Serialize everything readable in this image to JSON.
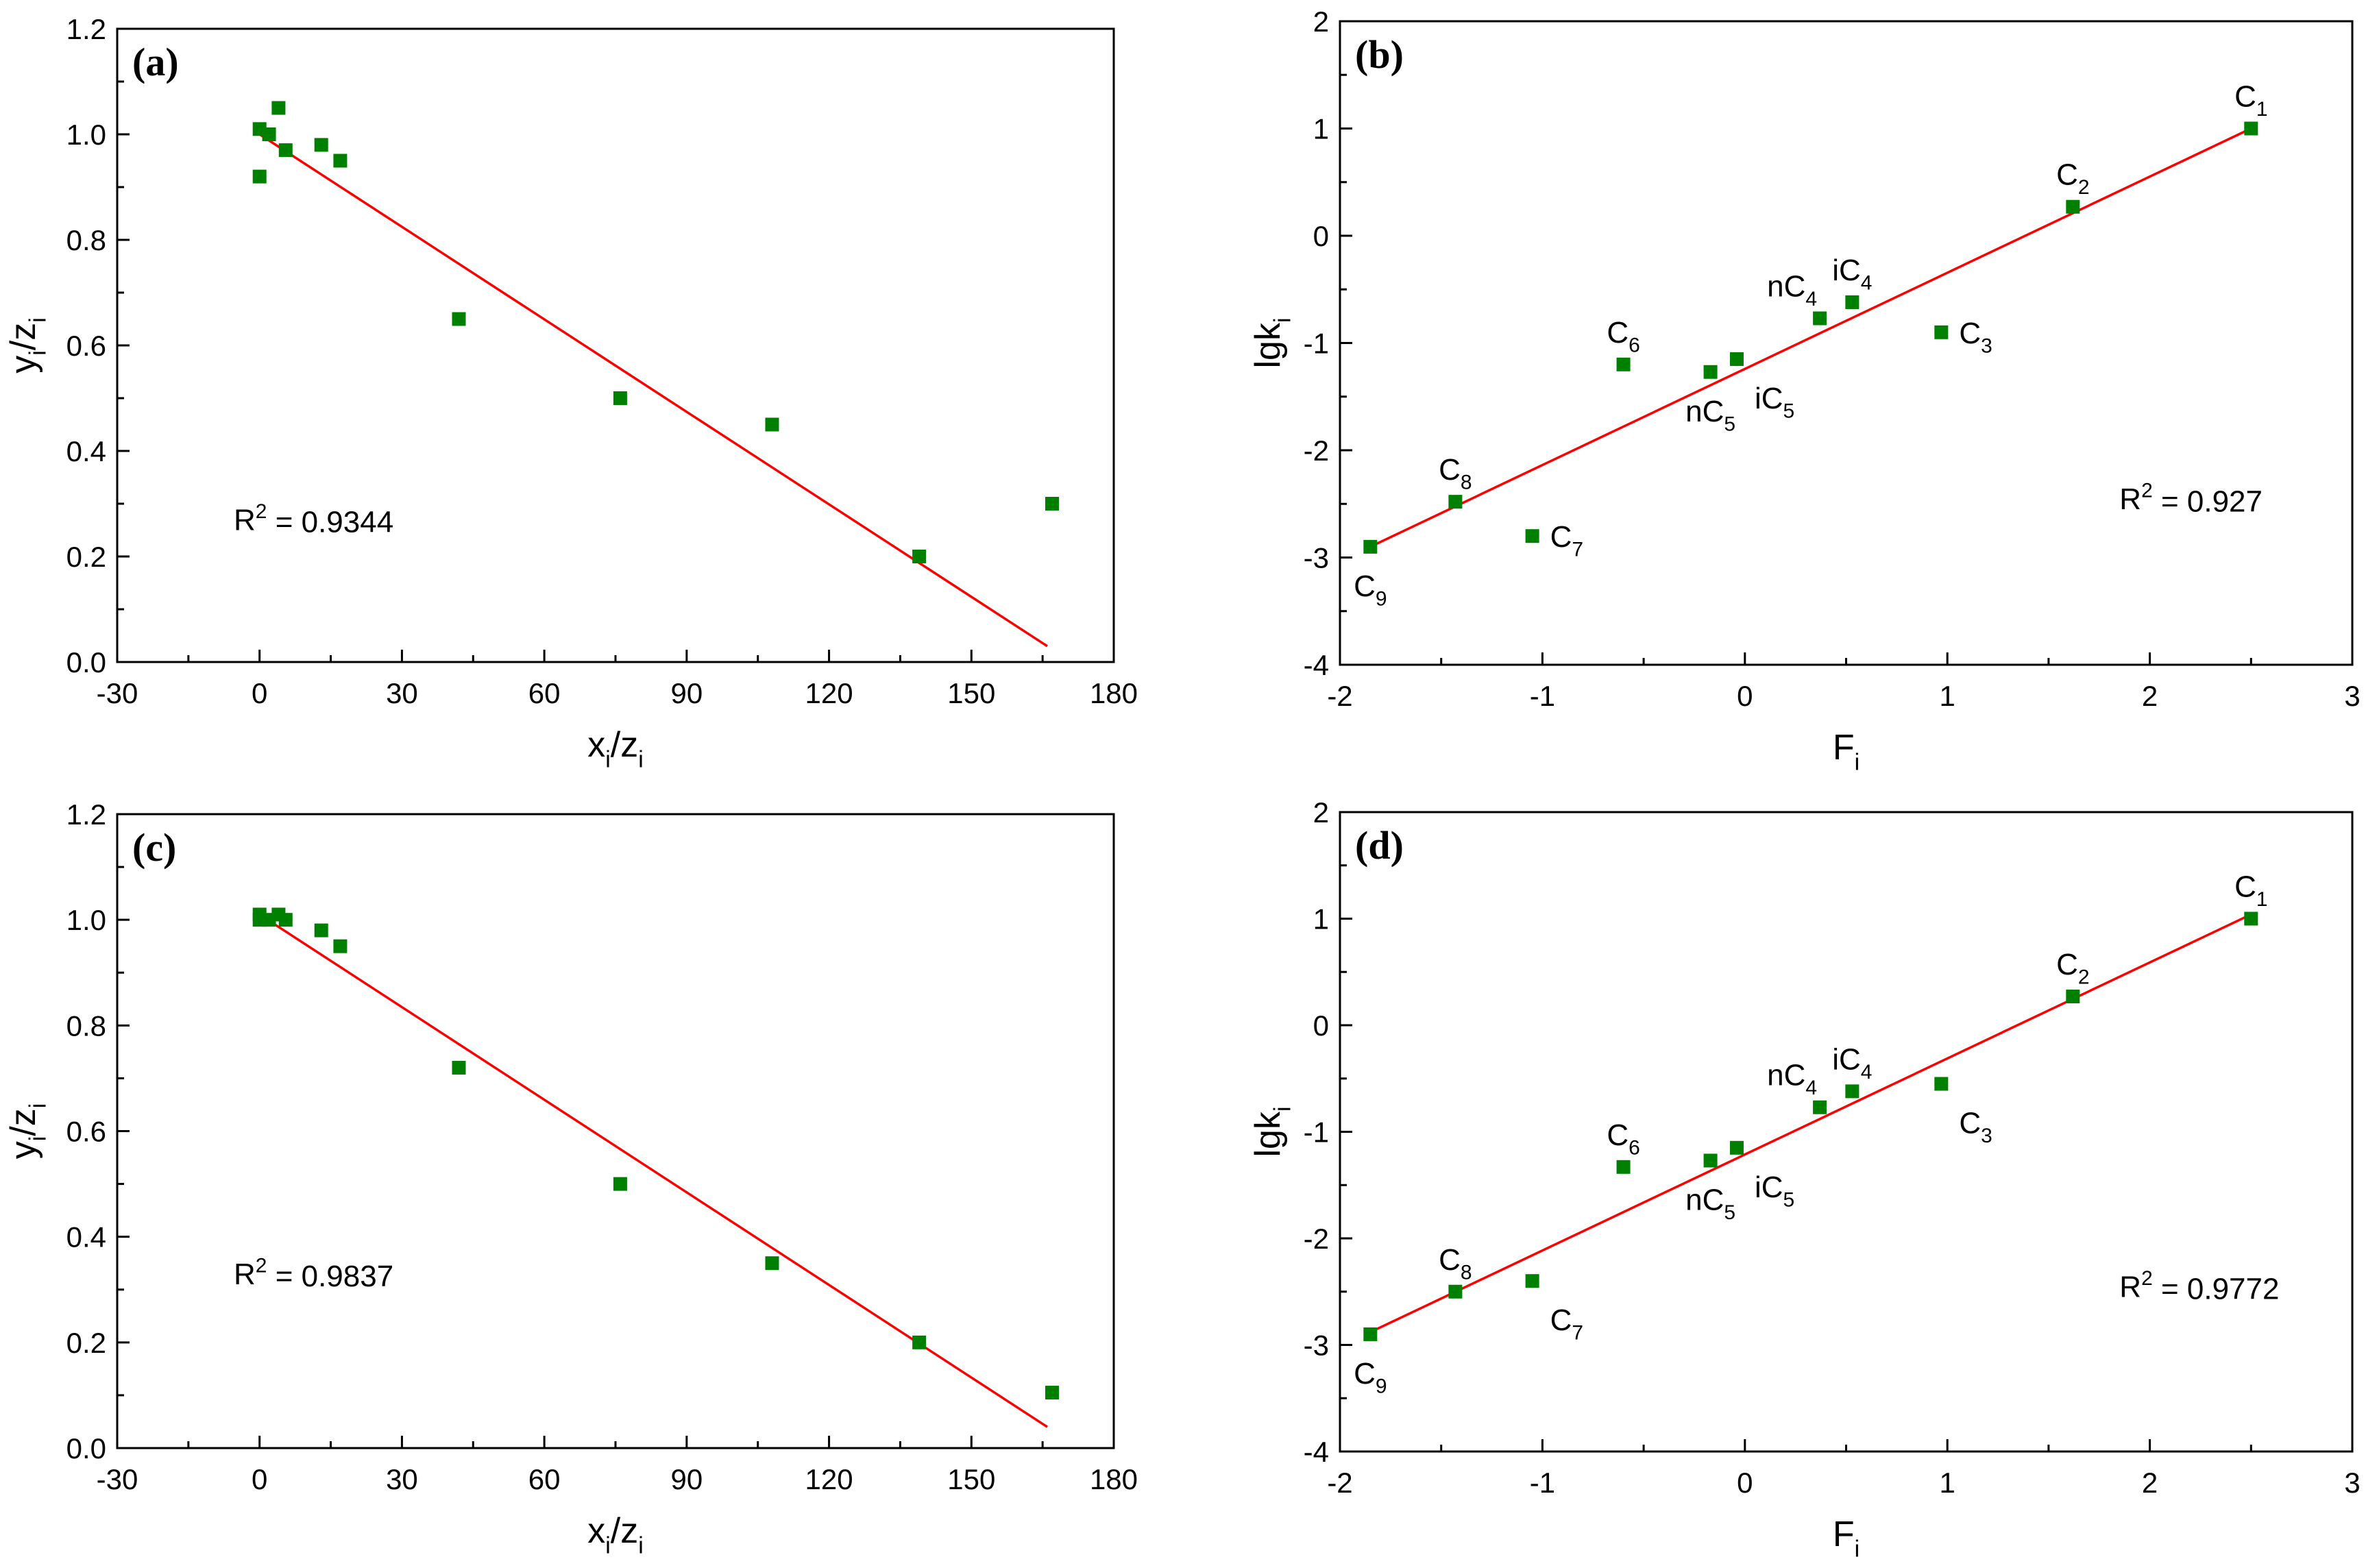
{
  "figure": {
    "background": "#ffffff",
    "marker_color": "#008000",
    "fit_color": "#ff0000",
    "axis_color": "#000000"
  },
  "chart_data": [
    {
      "id": "a",
      "type": "scatter",
      "panel_label": "(a)",
      "xlabel": {
        "base": "x",
        "sub": "i",
        "sep": "/",
        "base2": "z",
        "sub2": "i"
      },
      "ylabel": {
        "base": "y",
        "sub": "i",
        "sep": "/",
        "base2": "z",
        "sub2": "i"
      },
      "xlim": [
        -30,
        180
      ],
      "ylim": [
        0.0,
        1.2
      ],
      "xticks": [
        -30,
        0,
        30,
        60,
        90,
        120,
        150,
        180
      ],
      "xtick_labels": [
        "-30",
        "0",
        "30",
        "60",
        "90",
        "120",
        "150",
        "180"
      ],
      "yticks": [
        0.0,
        0.2,
        0.4,
        0.6,
        0.8,
        1.0,
        1.2
      ],
      "ytick_labels": [
        "0.0",
        "0.2",
        "0.4",
        "0.6",
        "0.8",
        "1.0",
        "1.2"
      ],
      "points": [
        {
          "x": 0,
          "y": 1.01
        },
        {
          "x": 0,
          "y": 0.92
        },
        {
          "x": 2,
          "y": 1.0
        },
        {
          "x": 4,
          "y": 1.05
        },
        {
          "x": 5.5,
          "y": 0.97
        },
        {
          "x": 13,
          "y": 0.98
        },
        {
          "x": 17,
          "y": 0.95
        },
        {
          "x": 42,
          "y": 0.65
        },
        {
          "x": 76,
          "y": 0.5
        },
        {
          "x": 108,
          "y": 0.45
        },
        {
          "x": 139,
          "y": 0.2
        },
        {
          "x": 167,
          "y": 0.3
        }
      ],
      "fit": {
        "x": [
          0,
          166
        ],
        "y": [
          1.0,
          0.03
        ]
      },
      "r2": {
        "prefix": "R",
        "sup": "2",
        "text": " = 0.9344"
      }
    },
    {
      "id": "b",
      "type": "scatter",
      "panel_label": "(b)",
      "xlabel": {
        "base": "F",
        "sub": "i"
      },
      "ylabel": {
        "base": "lgk",
        "sub": "i"
      },
      "xlim": [
        -2,
        3
      ],
      "ylim": [
        -4,
        2
      ],
      "xticks": [
        -2,
        -1,
        0,
        1,
        2,
        3
      ],
      "xtick_labels": [
        "-2",
        "-1",
        "0",
        "1",
        "2",
        "3"
      ],
      "yticks": [
        -4,
        -3,
        -2,
        -1,
        0,
        1,
        2
      ],
      "ytick_labels": [
        "-4",
        "-3",
        "-2",
        "-1",
        "0",
        "1",
        "2"
      ],
      "points": [
        {
          "x": 2.5,
          "y": 1.0,
          "label": {
            "base": "C",
            "sub": "1",
            "pos": "above"
          }
        },
        {
          "x": 1.62,
          "y": 0.27,
          "label": {
            "base": "C",
            "sub": "2",
            "pos": "above"
          }
        },
        {
          "x": 0.97,
          "y": -0.9,
          "label": {
            "base": "C",
            "sub": "3",
            "pos": "right"
          }
        },
        {
          "x": 0.37,
          "y": -0.77,
          "label": {
            "base": "nC",
            "sub": "4",
            "pos": "above-left"
          }
        },
        {
          "x": 0.53,
          "y": -0.62,
          "label": {
            "base": "iC",
            "sub": "4",
            "pos": "above"
          }
        },
        {
          "x": -0.04,
          "y": -1.15,
          "label": {
            "base": "iC",
            "sub": "5",
            "pos": "below-right"
          }
        },
        {
          "x": -0.17,
          "y": -1.27,
          "label": {
            "base": "nC",
            "sub": "5",
            "pos": "below"
          }
        },
        {
          "x": -0.6,
          "y": -1.2,
          "label": {
            "base": "C",
            "sub": "6",
            "pos": "above"
          }
        },
        {
          "x": -1.05,
          "y": -2.8,
          "label": {
            "base": "C",
            "sub": "7",
            "pos": "right"
          }
        },
        {
          "x": -1.43,
          "y": -2.48,
          "label": {
            "base": "C",
            "sub": "8",
            "pos": "above"
          }
        },
        {
          "x": -1.85,
          "y": -2.9,
          "label": {
            "base": "C",
            "sub": "9",
            "pos": "below"
          }
        }
      ],
      "fit": {
        "x": [
          -1.85,
          2.5
        ],
        "y": [
          -2.9,
          1.0
        ]
      },
      "r2": {
        "prefix": "R",
        "sup": "2",
        "text": " = 0.927"
      }
    },
    {
      "id": "c",
      "type": "scatter",
      "panel_label": "(c)",
      "xlabel": {
        "base": "x",
        "sub": "i",
        "sep": "/",
        "base2": "z",
        "sub2": "i"
      },
      "ylabel": {
        "base": "y",
        "sub": "i",
        "sep": "/",
        "base2": "z",
        "sub2": "i"
      },
      "xlim": [
        -30,
        180
      ],
      "ylim": [
        0.0,
        1.2
      ],
      "xticks": [
        -30,
        0,
        30,
        60,
        90,
        120,
        150,
        180
      ],
      "xtick_labels": [
        "-30",
        "0",
        "30",
        "60",
        "90",
        "120",
        "150",
        "180"
      ],
      "yticks": [
        0.0,
        0.2,
        0.4,
        0.6,
        0.8,
        1.0,
        1.2
      ],
      "ytick_labels": [
        "0.0",
        "0.2",
        "0.4",
        "0.6",
        "0.8",
        "1.0",
        "1.2"
      ],
      "points": [
        {
          "x": 0,
          "y": 1.0
        },
        {
          "x": 0,
          "y": 1.01
        },
        {
          "x": 2,
          "y": 1.0
        },
        {
          "x": 4,
          "y": 1.01
        },
        {
          "x": 5.5,
          "y": 1.0
        },
        {
          "x": 13,
          "y": 0.98
        },
        {
          "x": 17,
          "y": 0.95
        },
        {
          "x": 42,
          "y": 0.72
        },
        {
          "x": 76,
          "y": 0.5
        },
        {
          "x": 108,
          "y": 0.35
        },
        {
          "x": 139,
          "y": 0.2
        },
        {
          "x": 167,
          "y": 0.105
        }
      ],
      "fit": {
        "x": [
          0,
          166
        ],
        "y": [
          1.01,
          0.04
        ]
      },
      "r2": {
        "prefix": "R",
        "sup": "2",
        "text": " = 0.9837"
      }
    },
    {
      "id": "d",
      "type": "scatter",
      "panel_label": "(d)",
      "xlabel": {
        "base": "F",
        "sub": "i"
      },
      "ylabel": {
        "base": "lgk",
        "sub": "i"
      },
      "xlim": [
        -2,
        3
      ],
      "ylim": [
        -4,
        2
      ],
      "xticks": [
        -2,
        -1,
        0,
        1,
        2,
        3
      ],
      "xtick_labels": [
        "-2",
        "-1",
        "0",
        "1",
        "2",
        "3"
      ],
      "yticks": [
        -4,
        -3,
        -2,
        -1,
        0,
        1,
        2
      ],
      "ytick_labels": [
        "-4",
        "-3",
        "-2",
        "-1",
        "0",
        "1",
        "2"
      ],
      "points": [
        {
          "x": 2.5,
          "y": 1.0,
          "label": {
            "base": "C",
            "sub": "1",
            "pos": "above"
          }
        },
        {
          "x": 1.62,
          "y": 0.27,
          "label": {
            "base": "C",
            "sub": "2",
            "pos": "above"
          }
        },
        {
          "x": 0.97,
          "y": -0.55,
          "label": {
            "base": "C",
            "sub": "3",
            "pos": "below-right"
          }
        },
        {
          "x": 0.37,
          "y": -0.77,
          "label": {
            "base": "nC",
            "sub": "4",
            "pos": "above-left"
          }
        },
        {
          "x": 0.53,
          "y": -0.62,
          "label": {
            "base": "iC",
            "sub": "4",
            "pos": "above"
          }
        },
        {
          "x": -0.04,
          "y": -1.15,
          "label": {
            "base": "iC",
            "sub": "5",
            "pos": "below-right"
          }
        },
        {
          "x": -0.17,
          "y": -1.27,
          "label": {
            "base": "nC",
            "sub": "5",
            "pos": "below"
          }
        },
        {
          "x": -0.6,
          "y": -1.33,
          "label": {
            "base": "C",
            "sub": "6",
            "pos": "above"
          }
        },
        {
          "x": -1.05,
          "y": -2.4,
          "label": {
            "base": "C",
            "sub": "7",
            "pos": "below-right"
          }
        },
        {
          "x": -1.43,
          "y": -2.5,
          "label": {
            "base": "C",
            "sub": "8",
            "pos": "above"
          }
        },
        {
          "x": -1.85,
          "y": -2.9,
          "label": {
            "base": "C",
            "sub": "9",
            "pos": "below"
          }
        }
      ],
      "fit": {
        "x": [
          -1.85,
          2.5
        ],
        "y": [
          -2.88,
          1.04
        ]
      },
      "r2": {
        "prefix": "R",
        "sup": "2",
        "text": " = 0.9772"
      }
    }
  ]
}
